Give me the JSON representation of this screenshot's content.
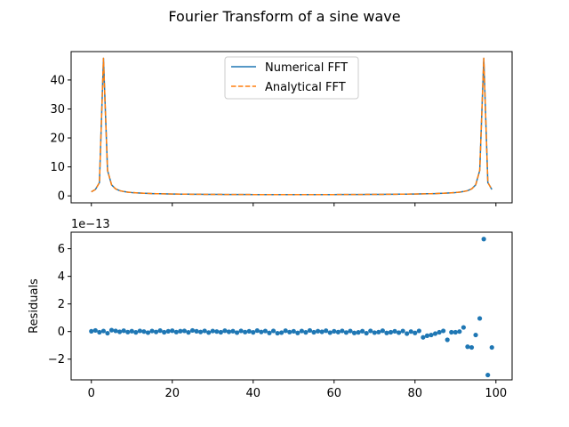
{
  "figure": {
    "title": "Fourier Transform of a sine wave"
  },
  "colors": {
    "numerical": "#1f77b4",
    "analytical": "#ff7f0e",
    "residuals": "#1f77b4"
  },
  "chart_data": [
    {
      "type": "line",
      "title": "",
      "xlabel": "",
      "ylabel": "",
      "xlim": [
        -5,
        104
      ],
      "ylim": [
        -2.4,
        49.8
      ],
      "xticks": [
        0,
        20,
        40,
        60,
        80,
        100
      ],
      "xtick_labels_visible": false,
      "yticks": [
        0,
        10,
        20,
        30,
        40
      ],
      "ytick_labels": [
        "0",
        "10",
        "20",
        "30",
        "40"
      ],
      "legend": {
        "placement": "upper center",
        "entries": [
          "Numerical FFT",
          "Analytical FFT"
        ]
      },
      "grid": false,
      "x": [
        0,
        1,
        2,
        3,
        4,
        5,
        6,
        7,
        8,
        9,
        10,
        11,
        12,
        13,
        14,
        15,
        16,
        17,
        18,
        19,
        20,
        21,
        22,
        23,
        24,
        25,
        26,
        27,
        28,
        29,
        30,
        31,
        32,
        33,
        34,
        35,
        36,
        37,
        38,
        39,
        40,
        41,
        42,
        43,
        44,
        45,
        46,
        47,
        48,
        49,
        50,
        51,
        52,
        53,
        54,
        55,
        56,
        57,
        58,
        59,
        60,
        61,
        62,
        63,
        64,
        65,
        66,
        67,
        68,
        69,
        70,
        71,
        72,
        73,
        74,
        75,
        76,
        77,
        78,
        79,
        80,
        81,
        82,
        83,
        84,
        85,
        86,
        87,
        88,
        89,
        90,
        91,
        92,
        93,
        94,
        95,
        96,
        97,
        98,
        99
      ],
      "series": [
        {
          "name": "Numerical FFT",
          "style": "solid",
          "values": [
            1.4,
            2.2,
            4.6,
            47.5,
            8.8,
            3.8,
            2.4,
            1.8,
            1.5,
            1.3,
            1.15,
            1.05,
            0.97,
            0.9,
            0.85,
            0.8,
            0.76,
            0.73,
            0.7,
            0.67,
            0.65,
            0.63,
            0.61,
            0.59,
            0.58,
            0.56,
            0.55,
            0.54,
            0.53,
            0.52,
            0.51,
            0.5,
            0.5,
            0.49,
            0.49,
            0.48,
            0.48,
            0.47,
            0.47,
            0.47,
            0.46,
            0.46,
            0.46,
            0.46,
            0.46,
            0.45,
            0.45,
            0.45,
            0.45,
            0.45,
            0.45,
            0.45,
            0.45,
            0.45,
            0.45,
            0.45,
            0.46,
            0.46,
            0.46,
            0.46,
            0.46,
            0.47,
            0.47,
            0.47,
            0.48,
            0.48,
            0.49,
            0.49,
            0.5,
            0.5,
            0.51,
            0.52,
            0.53,
            0.54,
            0.55,
            0.56,
            0.58,
            0.59,
            0.61,
            0.63,
            0.65,
            0.67,
            0.7,
            0.73,
            0.76,
            0.8,
            0.85,
            0.9,
            0.97,
            1.05,
            1.15,
            1.3,
            1.5,
            1.8,
            2.4,
            3.8,
            8.8,
            47.5,
            4.6,
            2.2
          ]
        },
        {
          "name": "Analytical FFT",
          "style": "dashed",
          "values": [
            1.4,
            2.2,
            4.6,
            47.5,
            8.8,
            3.8,
            2.4,
            1.8,
            1.5,
            1.3,
            1.15,
            1.05,
            0.97,
            0.9,
            0.85,
            0.8,
            0.76,
            0.73,
            0.7,
            0.67,
            0.65,
            0.63,
            0.61,
            0.59,
            0.58,
            0.56,
            0.55,
            0.54,
            0.53,
            0.52,
            0.51,
            0.5,
            0.5,
            0.49,
            0.49,
            0.48,
            0.48,
            0.47,
            0.47,
            0.47,
            0.46,
            0.46,
            0.46,
            0.46,
            0.46,
            0.45,
            0.45,
            0.45,
            0.45,
            0.45,
            0.45,
            0.45,
            0.45,
            0.45,
            0.45,
            0.45,
            0.46,
            0.46,
            0.46,
            0.46,
            0.46,
            0.47,
            0.47,
            0.47,
            0.48,
            0.48,
            0.49,
            0.49,
            0.5,
            0.5,
            0.51,
            0.52,
            0.53,
            0.54,
            0.55,
            0.56,
            0.58,
            0.59,
            0.61,
            0.63,
            0.65,
            0.67,
            0.7,
            0.73,
            0.76,
            0.8,
            0.85,
            0.9,
            0.97,
            1.05,
            1.15,
            1.3,
            1.5,
            1.8,
            2.4,
            3.8,
            8.8,
            47.5,
            4.6,
            2.2
          ]
        }
      ]
    },
    {
      "type": "scatter",
      "title": "",
      "xlabel": "",
      "ylabel": "Residuals",
      "offset_label": "1e−13",
      "xlim": [
        -5,
        104
      ],
      "ylim": [
        -3.5,
        7.2
      ],
      "xticks": [
        0,
        20,
        40,
        60,
        80,
        100
      ],
      "xtick_labels": [
        "0",
        "20",
        "40",
        "60",
        "80",
        "100"
      ],
      "yticks": [
        -2,
        0,
        2,
        4,
        6
      ],
      "ytick_labels": [
        "−2",
        "0",
        "2",
        "4",
        "6"
      ],
      "grid": false,
      "x": [
        0,
        1,
        2,
        3,
        4,
        5,
        6,
        7,
        8,
        9,
        10,
        11,
        12,
        13,
        14,
        15,
        16,
        17,
        18,
        19,
        20,
        21,
        22,
        23,
        24,
        25,
        26,
        27,
        28,
        29,
        30,
        31,
        32,
        33,
        34,
        35,
        36,
        37,
        38,
        39,
        40,
        41,
        42,
        43,
        44,
        45,
        46,
        47,
        48,
        49,
        50,
        51,
        52,
        53,
        54,
        55,
        56,
        57,
        58,
        59,
        60,
        61,
        62,
        63,
        64,
        65,
        66,
        67,
        68,
        69,
        70,
        71,
        72,
        73,
        74,
        75,
        76,
        77,
        78,
        79,
        80,
        81,
        82,
        83,
        84,
        85,
        86,
        87,
        88,
        89,
        90,
        91,
        92,
        93,
        94,
        95,
        96,
        97,
        98,
        99
      ],
      "series": [
        {
          "name": "",
          "values": [
            0.02,
            0.08,
            -0.05,
            0.04,
            -0.12,
            0.1,
            0.05,
            -0.02,
            0.06,
            -0.04,
            0.03,
            -0.06,
            0.05,
            0.0,
            -0.08,
            0.04,
            -0.03,
            0.07,
            -0.05,
            0.02,
            0.06,
            -0.04,
            0.03,
            0.05,
            -0.06,
            0.08,
            0.02,
            -0.03,
            0.05,
            -0.07,
            0.04,
            0.0,
            -0.05,
            0.06,
            -0.02,
            0.03,
            -0.08,
            0.05,
            -0.04,
            0.02,
            -0.06,
            0.07,
            -0.03,
            0.04,
            -0.1,
            0.05,
            -0.12,
            -0.08,
            0.06,
            -0.04,
            0.02,
            -0.1,
            0.04,
            -0.06,
            0.08,
            -0.05,
            0.03,
            -0.02,
            0.06,
            -0.08,
            0.02,
            -0.04,
            0.05,
            -0.07,
            0.04,
            -0.1,
            -0.06,
            0.03,
            -0.12,
            0.05,
            -0.08,
            -0.04,
            0.06,
            -0.1,
            -0.05,
            0.02,
            -0.08,
            0.04,
            -0.15,
            0.0,
            -0.1,
            0.05,
            -0.42,
            -0.3,
            -0.25,
            -0.15,
            -0.05,
            0.05,
            -0.6,
            -0.05,
            -0.05,
            0.0,
            0.3,
            -1.1,
            -1.15,
            -0.25,
            0.95,
            6.7,
            -3.15,
            -1.15
          ]
        }
      ]
    }
  ]
}
